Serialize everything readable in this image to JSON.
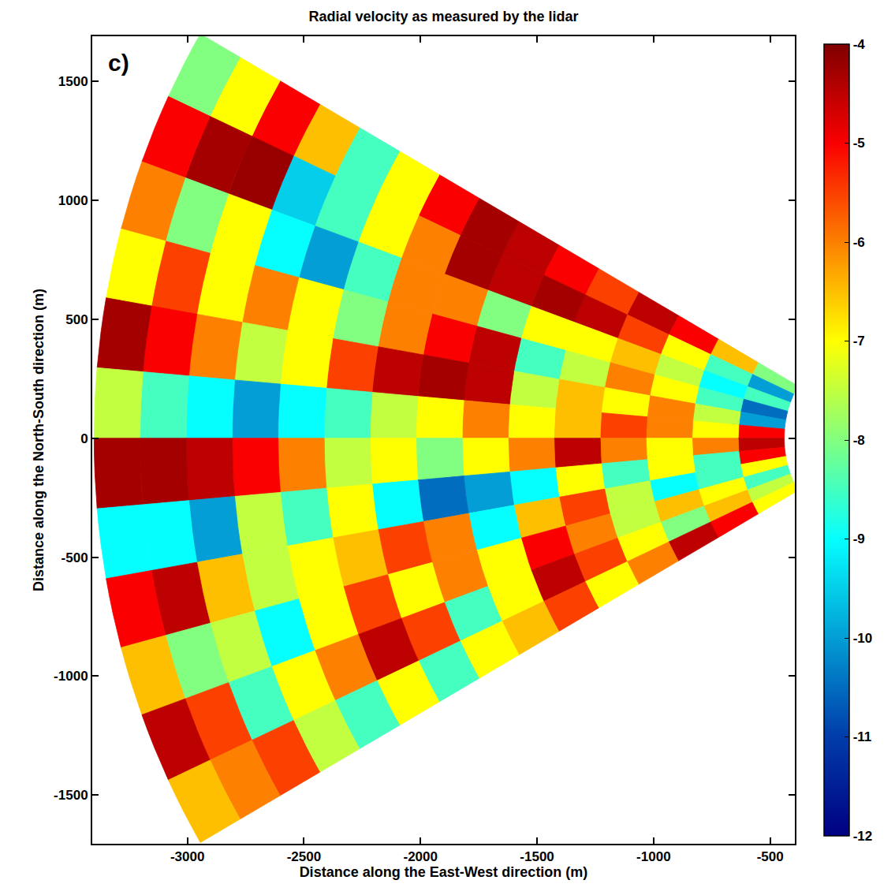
{
  "chart_data": {
    "type": "heatmap",
    "title": "Radial velocity as measured by the lidar",
    "panel_label": "c)",
    "xlabel": "Distance along the East-West direction (m)",
    "ylabel": "Distance along the North-South direction (m)",
    "xlim": [
      -3408,
      -394
    ],
    "ylim": [
      -1705,
      1690
    ],
    "xticks": [
      -3000,
      -2500,
      -2000,
      -1500,
      -1000,
      -500
    ],
    "yticks": [
      -1500,
      -1000,
      -500,
      0,
      500,
      1000,
      1500
    ],
    "grid": false,
    "color": "jet",
    "azimuth_edges": [
      150,
      155,
      160,
      165,
      170,
      175,
      180,
      185,
      190,
      195,
      200,
      205,
      210
    ],
    "range_edges": [
      440,
      637,
      835,
      1032,
      1229,
      1427,
      1624,
      1821,
      2019,
      2216,
      2413,
      2611,
      2808,
      3005,
      3203,
      3400
    ],
    "cells": [
      [
        -8,
        -6.5,
        -5,
        -4.5,
        -5.5,
        -5,
        -4.5,
        -4.3,
        -5,
        -7,
        -8.5,
        -6.5,
        -5,
        -7,
        -8
      ],
      [
        -10,
        -8.5,
        -7,
        -5.5,
        -4.5,
        -4.3,
        -4.5,
        -4.3,
        -6,
        -7,
        -8.5,
        -9.5,
        -4.2,
        -4.3,
        -5
      ],
      [
        -8.5,
        -9,
        -7.5,
        -6.5,
        -7,
        -7,
        -8,
        -6,
        -6,
        -8.5,
        -10,
        -9,
        -7,
        -8,
        -6
      ],
      [
        -10.5,
        -8.5,
        -7,
        -6,
        -7.5,
        -8.5,
        -4.5,
        -5,
        -6,
        -8,
        -7,
        -6,
        -7,
        -5.5,
        -7
      ],
      [
        -10,
        -7.5,
        -6,
        -7,
        -6.5,
        -7.5,
        -4.5,
        -4.3,
        -4.5,
        -5.5,
        -7,
        -7.5,
        -6,
        -5,
        -4.3
      ],
      [
        -5,
        -7,
        -6,
        -5.5,
        -6.5,
        -7,
        -6,
        -7,
        -7.5,
        -8.5,
        -9,
        -10,
        -9,
        -8.5,
        -7.5
      ],
      [
        -4.5,
        -6,
        -7,
        -6,
        -4.5,
        -6,
        -7,
        -8,
        -7,
        -7.5,
        -6,
        -5,
        -4.5,
        -4.3,
        -4.3
      ],
      [
        -5,
        -8.5,
        -7,
        -8.5,
        -7,
        -9,
        -10,
        -10.5,
        -9,
        -7,
        -8.5,
        -7.5,
        -10,
        -9,
        -9
      ],
      [
        -7,
        -8.5,
        -9,
        -7.5,
        -5.5,
        -6.5,
        -9,
        -6,
        -5.5,
        -6.5,
        -7,
        -7.5,
        -6.5,
        -4.5,
        -5
      ],
      [
        -8.5,
        -7,
        -6.5,
        -7.5,
        -6,
        -5,
        -7,
        -6,
        -7,
        -5.5,
        -7,
        -9,
        -7.5,
        -8,
        -6.5
      ],
      [
        -7.5,
        -6.5,
        -8,
        -7,
        -5.5,
        -4.5,
        -7,
        -8.5,
        -5.5,
        -4.5,
        -6,
        -7,
        -8.5,
        -5.5,
        -4.5
      ],
      [
        -7,
        -5,
        -4.5,
        -6,
        -7,
        -5.5,
        -6.5,
        -7,
        -8.5,
        -7,
        -8.5,
        -7.5,
        -5.5,
        -6,
        -6.5
      ]
    ],
    "colorbar": {
      "range": [
        -12,
        -4
      ],
      "ticks": [
        -12,
        -11,
        -10,
        -9,
        -8,
        -7,
        -6,
        -5,
        -4
      ]
    }
  }
}
